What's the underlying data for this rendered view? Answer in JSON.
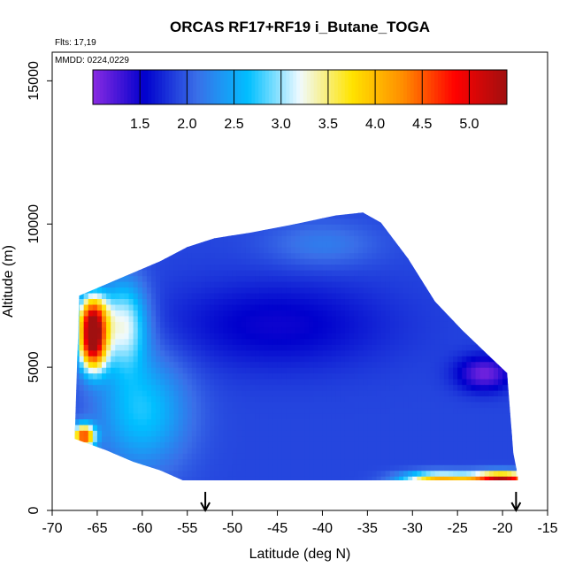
{
  "chart_data": {
    "type": "heatmap",
    "title": "ORCAS RF17+RF19 i_Butane_TOGA",
    "flights_note": "Flts: 17,19",
    "dates_note": "MMDD: 0224,0229",
    "xlabel": "Latitude (deg N)",
    "ylabel": "Altitude (m)",
    "xlim": [
      -70,
      -15
    ],
    "ylim": [
      0,
      16000
    ],
    "x_ticks": [
      -70,
      -65,
      -60,
      -55,
      -50,
      -45,
      -40,
      -35,
      -30,
      -25,
      -20,
      -15
    ],
    "y_ticks": [
      0,
      5000,
      10000,
      15000
    ],
    "grid": false,
    "colorbar": {
      "position": "top-inside",
      "min": 1.0,
      "max": 5.4,
      "ticks": [
        "1.5",
        "2.0",
        "2.5",
        "3.0",
        "3.5",
        "4.0",
        "4.5",
        "5.0"
      ],
      "tick_values": [
        1.5,
        2.0,
        2.5,
        3.0,
        3.5,
        4.0,
        4.5,
        5.0
      ],
      "colors": [
        "#8a2be2",
        "#0000cd",
        "#3a6ee8",
        "#00bfff",
        "#f0faff",
        "#ffe400",
        "#ff8c00",
        "#ff0000",
        "#a01010"
      ]
    },
    "arrow_markers_x": [
      -53,
      -18.5
    ],
    "envelope": {
      "upper": [
        {
          "lat": -67.0,
          "alt": 7500
        },
        {
          "lat": -64.0,
          "alt": 7900
        },
        {
          "lat": -61.0,
          "alt": 8300
        },
        {
          "lat": -58.0,
          "alt": 8700
        },
        {
          "lat": -55.0,
          "alt": 9200
        },
        {
          "lat": -52.0,
          "alt": 9500
        },
        {
          "lat": -48.0,
          "alt": 9700
        },
        {
          "lat": -43.0,
          "alt": 10000
        },
        {
          "lat": -38.5,
          "alt": 10300
        },
        {
          "lat": -35.5,
          "alt": 10400
        },
        {
          "lat": -33.5,
          "alt": 10050
        },
        {
          "lat": -30.5,
          "alt": 8800
        },
        {
          "lat": -27.5,
          "alt": 7300
        },
        {
          "lat": -24.5,
          "alt": 6300
        },
        {
          "lat": -21.5,
          "alt": 5400
        },
        {
          "lat": -19.5,
          "alt": 4800
        },
        {
          "lat": -18.8,
          "alt": 2000
        },
        {
          "lat": -18.3,
          "alt": 1200
        }
      ],
      "lower": [
        {
          "lat": -67.5,
          "alt": 2500
        },
        {
          "lat": -64.0,
          "alt": 2100
        },
        {
          "lat": -61.0,
          "alt": 1700
        },
        {
          "lat": -58.0,
          "alt": 1400
        },
        {
          "lat": -55.5,
          "alt": 1050
        },
        {
          "lat": -45.0,
          "alt": 1050
        },
        {
          "lat": -30.0,
          "alt": 1050
        },
        {
          "lat": -18.3,
          "alt": 1050
        }
      ]
    },
    "field": {
      "background": 1.9,
      "features": [
        {
          "lat": -65.5,
          "alt": 5800,
          "value": 5.0,
          "radius_lat": 1.5,
          "radius_alt": 900
        },
        {
          "lat": -65.5,
          "alt": 6800,
          "value": 4.3,
          "radius_lat": 1.6,
          "radius_alt": 800
        },
        {
          "lat": -66.5,
          "alt": 2600,
          "value": 4.6,
          "radius_lat": 1.2,
          "radius_alt": 400
        },
        {
          "lat": -62.0,
          "alt": 6500,
          "value": 3.2,
          "radius_lat": 2.5,
          "radius_alt": 1500
        },
        {
          "lat": -60.0,
          "alt": 3500,
          "value": 2.7,
          "radius_lat": 5.0,
          "radius_alt": 2000
        },
        {
          "lat": -45.0,
          "alt": 6500,
          "value": 1.5,
          "radius_lat": 12.0,
          "radius_alt": 1500
        },
        {
          "lat": -22.0,
          "alt": 4800,
          "value": 1.1,
          "radius_lat": 3.0,
          "radius_alt": 600
        },
        {
          "lat": -20.0,
          "alt": 1100,
          "value": 5.2,
          "radius_lat": 3.5,
          "radius_alt": 250
        },
        {
          "lat": -27.0,
          "alt": 1100,
          "value": 4.0,
          "radius_lat": 4.0,
          "radius_alt": 250
        },
        {
          "lat": -40.0,
          "alt": 9300,
          "value": 2.2,
          "radius_lat": 6.0,
          "radius_alt": 800
        }
      ]
    }
  }
}
